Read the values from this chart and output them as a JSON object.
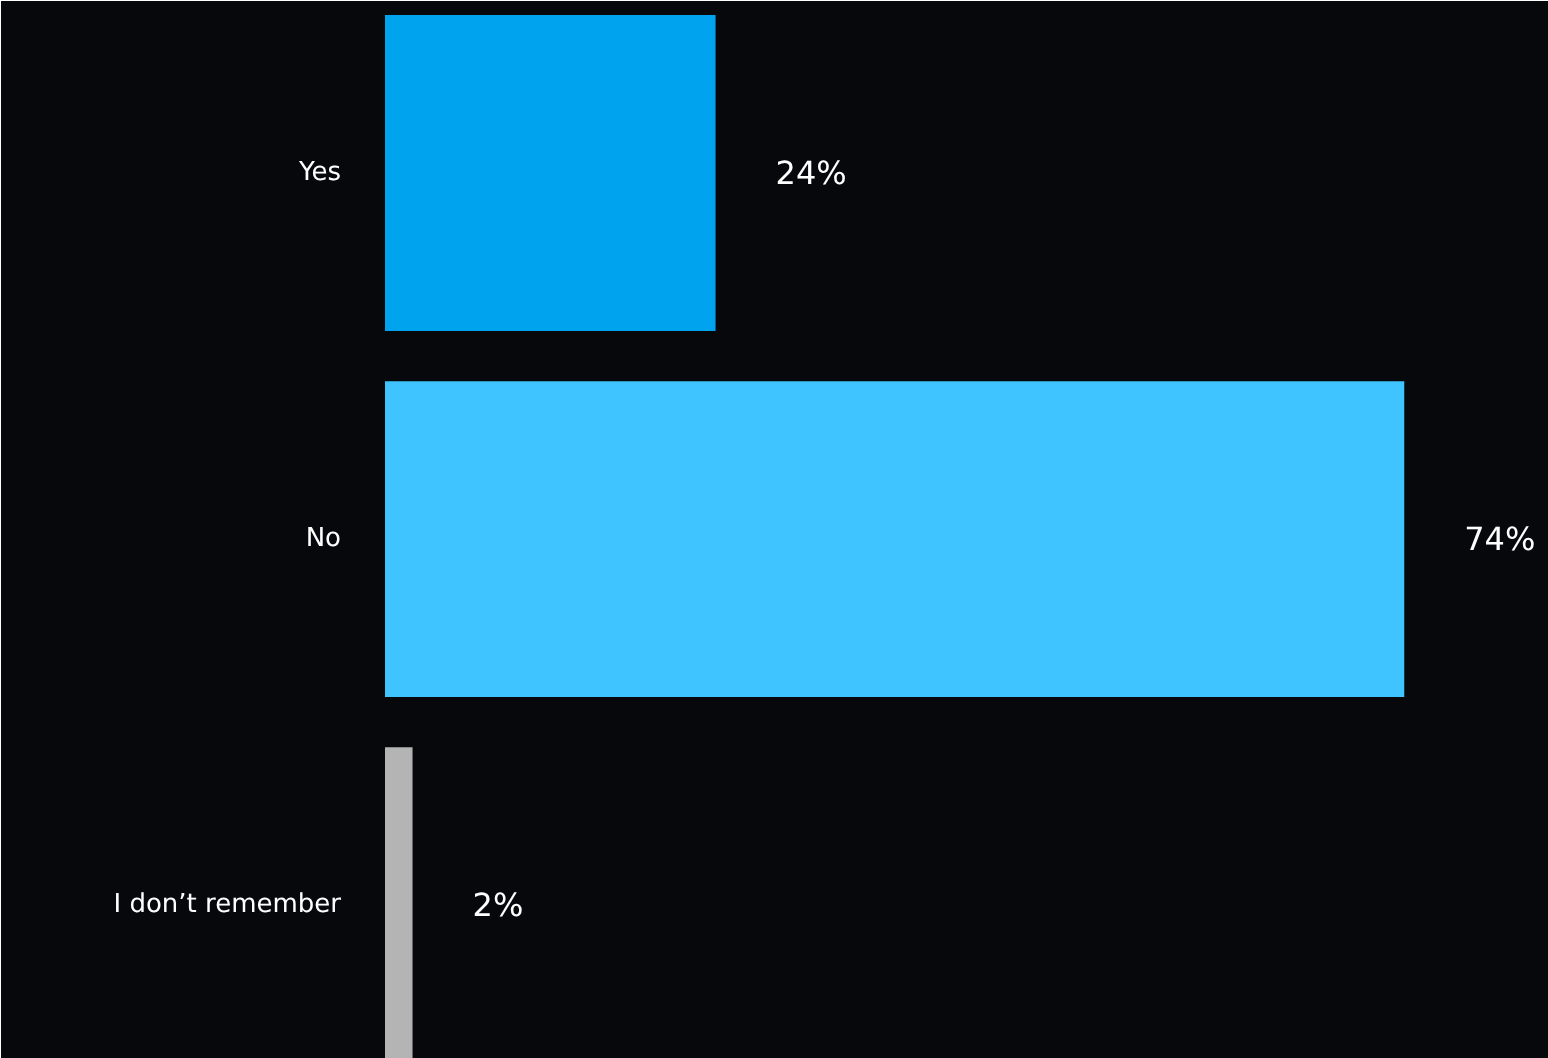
{
  "chart_data": {
    "type": "bar",
    "orientation": "horizontal",
    "categories": [
      "Yes",
      "No",
      "I don’t remember"
    ],
    "values": [
      24,
      74,
      2
    ],
    "colors": [
      "#00a3ee",
      "#40c4ff",
      "#b4b4b4"
    ],
    "value_labels": [
      "24%",
      "74%",
      "2%"
    ],
    "grid": false
  }
}
